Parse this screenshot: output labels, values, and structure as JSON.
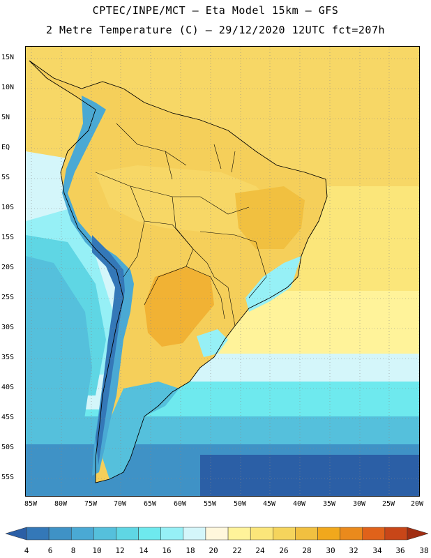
{
  "title_line1": "CPTEC/INPE/MCT –  Eta Model 15km – GFS",
  "title_line2": "2 Metre Temperature (C) – 29/12/2020 12UTC fct=207h",
  "lat_labels": [
    "15N",
    "10N",
    "5N",
    "EQ",
    "5S",
    "10S",
    "15S",
    "20S",
    "25S",
    "30S",
    "35S",
    "40S",
    "45S",
    "50S",
    "55S"
  ],
  "lon_labels": [
    "85W",
    "80W",
    "75W",
    "70W",
    "65W",
    "60W",
    "55W",
    "50W",
    "45W",
    "40W",
    "35W",
    "30W",
    "25W",
    "20W"
  ],
  "colorbar": {
    "levels": [
      "4",
      "6",
      "8",
      "10",
      "12",
      "14",
      "16",
      "18",
      "20",
      "22",
      "24",
      "26",
      "28",
      "30",
      "32",
      "34",
      "36",
      "38"
    ],
    "colors": [
      "#2b5fa6",
      "#3478b8",
      "#3f92c6",
      "#4aa9d4",
      "#55c0dc",
      "#5fd6e4",
      "#6ee9ee",
      "#96f0f6",
      "#d4f6fa",
      "#fff7dc",
      "#fff39a",
      "#fbe67a",
      "#f5d45c",
      "#f1c040",
      "#f1a81c",
      "#ea8a1c",
      "#e0621a",
      "#c84618",
      "#a02e12"
    ]
  },
  "legend_colors": {
    "ocean_cold": "#2b5fa6",
    "ocean_mid": "#4aa9d4",
    "ocean_warm": "#d4f6fa",
    "tropical": "#f7d766",
    "land_warm": "#f5cf5a",
    "hot_core": "#f1b234",
    "andes": "#4aa9d4"
  }
}
